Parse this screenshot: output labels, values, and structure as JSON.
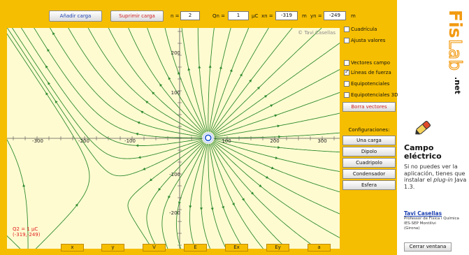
{
  "toolbar": {
    "add_charge": "Añadir carga",
    "remove_charge": "Suprimir carga",
    "n_label": "n =",
    "n_value": "2",
    "qn_label": "Qn =",
    "qn_value": "1",
    "qn_unit": "µC",
    "xn_label": "xn =",
    "xn_value": "-319",
    "xn_unit": "m",
    "yn_label": "yn =",
    "yn_value": "-249",
    "yn_unit": "m"
  },
  "plot": {
    "watermark": "© Tavi Casellas",
    "x_ticks": [
      "-300",
      "-200",
      "-100",
      "100",
      "200",
      "300"
    ],
    "y_ticks": [
      "200",
      "100",
      "-100",
      "-200"
    ],
    "charge_label_line1": "Q2 = 1 µC",
    "charge_label_line2": "(-319,-249)"
  },
  "options": {
    "grid": "Cuadrícula",
    "adjust": "Ajusta valores",
    "field_vectors": "Vectores campo",
    "field_lines": "Líneas de fuerza",
    "equipotentials": "Equipotenciales",
    "equipotentials_3d": "Equipotenciales 3D",
    "clear_vectors": "Borra vectores",
    "grid_checked": false,
    "adjust_checked": false,
    "field_vectors_checked": false,
    "field_lines_checked": true,
    "equipotentials_checked": false,
    "equipotentials_3d_checked": false
  },
  "configs": {
    "title": "Configuraciones:",
    "one_charge": "Una carga",
    "dipole": "Dipolo",
    "quadrupole": "Cuadripolo",
    "capacitor": "Condensador",
    "sphere": "Esfera"
  },
  "bottom_buttons": [
    "x",
    "y",
    "V",
    "E",
    "Ex",
    "Ey",
    "a"
  ],
  "sidebar": {
    "logo_fis": "Fis",
    "logo_lab": "Lab",
    "logo_net": ".net",
    "title_line1": "Campo",
    "title_line2": "eléctrico",
    "desc_pre": "Si no puedes ver la aplicación, tienes que instalar el ",
    "desc_plugin": "plug-in",
    "desc_post": " Java 1.3.",
    "author": "Tavi Casellas",
    "author_line1": "Professor de Física i Química",
    "author_line2": "IES-SEP Montilivi",
    "author_line3": "(Girona)",
    "close": "Cerrar ventana"
  },
  "colors": {
    "frame": "#f6be00",
    "plot_bg": "#fffbd1",
    "field_line": "#2e8b2e",
    "charge": "#1a55d0",
    "charge_label": "#e02020",
    "logo_orange": "#f29a12"
  }
}
